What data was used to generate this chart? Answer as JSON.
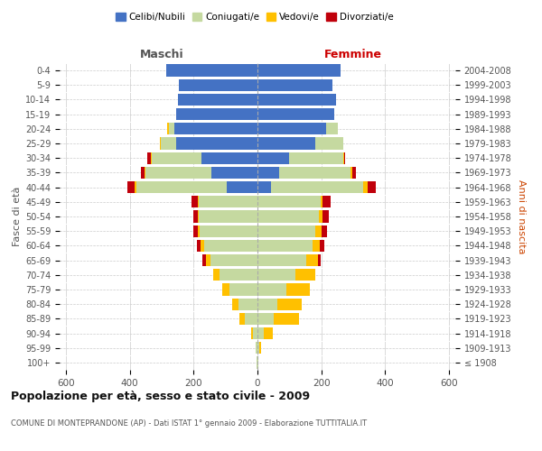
{
  "age_groups": [
    "100+",
    "95-99",
    "90-94",
    "85-89",
    "80-84",
    "75-79",
    "70-74",
    "65-69",
    "60-64",
    "55-59",
    "50-54",
    "45-49",
    "40-44",
    "35-39",
    "30-34",
    "25-29",
    "20-24",
    "15-19",
    "10-14",
    "5-9",
    "0-4"
  ],
  "birth_years": [
    "≤ 1908",
    "1909-1913",
    "1914-1918",
    "1919-1923",
    "1924-1928",
    "1929-1933",
    "1934-1938",
    "1939-1943",
    "1944-1948",
    "1949-1953",
    "1954-1958",
    "1959-1963",
    "1964-1968",
    "1969-1973",
    "1974-1978",
    "1979-1983",
    "1984-1988",
    "1989-1993",
    "1994-1998",
    "1999-2003",
    "2004-2008"
  ],
  "males": {
    "celibi": [
      0,
      0,
      0,
      0,
      0,
      0,
      0,
      0,
      0,
      0,
      0,
      0,
      95,
      145,
      175,
      255,
      260,
      255,
      250,
      245,
      285
    ],
    "coniugati": [
      2,
      5,
      15,
      40,
      60,
      88,
      118,
      148,
      168,
      182,
      183,
      183,
      285,
      205,
      155,
      48,
      18,
      0,
      0,
      0,
      0
    ],
    "vedovi": [
      0,
      0,
      5,
      18,
      20,
      22,
      20,
      14,
      9,
      5,
      4,
      4,
      4,
      4,
      4,
      4,
      4,
      0,
      0,
      0,
      0
    ],
    "divorziati": [
      0,
      0,
      0,
      0,
      0,
      0,
      0,
      10,
      14,
      14,
      14,
      20,
      24,
      10,
      10,
      0,
      0,
      0,
      0,
      0,
      0
    ]
  },
  "females": {
    "nubili": [
      0,
      0,
      0,
      0,
      0,
      0,
      0,
      0,
      0,
      0,
      0,
      0,
      42,
      68,
      98,
      182,
      215,
      240,
      245,
      235,
      260
    ],
    "coniugate": [
      2,
      5,
      20,
      52,
      62,
      92,
      118,
      152,
      172,
      182,
      192,
      197,
      290,
      225,
      170,
      88,
      38,
      0,
      0,
      0,
      0
    ],
    "vedove": [
      0,
      5,
      28,
      78,
      78,
      73,
      63,
      38,
      23,
      18,
      13,
      8,
      12,
      4,
      4,
      0,
      0,
      0,
      0,
      0,
      0
    ],
    "divorziate": [
      0,
      0,
      0,
      0,
      0,
      0,
      0,
      9,
      14,
      18,
      18,
      23,
      28,
      13,
      4,
      0,
      0,
      0,
      0,
      0,
      0
    ]
  },
  "colors": {
    "celibi": "#4472c4",
    "coniugati": "#c5d9a0",
    "vedovi": "#ffc000",
    "divorziati": "#c0000b"
  },
  "xlim": 620,
  "title": "Popolazione per età, sesso e stato civile - 2009",
  "subtitle": "COMUNE DI MONTEPRANDONE (AP) - Dati ISTAT 1° gennaio 2009 - Elaborazione TUTTITALIA.IT",
  "ylabel_left": "Fasce di età",
  "ylabel_right": "Anni di nascita",
  "xlabel_left": "Maschi",
  "xlabel_right": "Femmine",
  "background_color": "#ffffff",
  "grid_color": "#cccccc",
  "legend_labels": [
    "Celibi/Nubili",
    "Coniugati/e",
    "Vedovi/e",
    "Divorziati/e"
  ]
}
